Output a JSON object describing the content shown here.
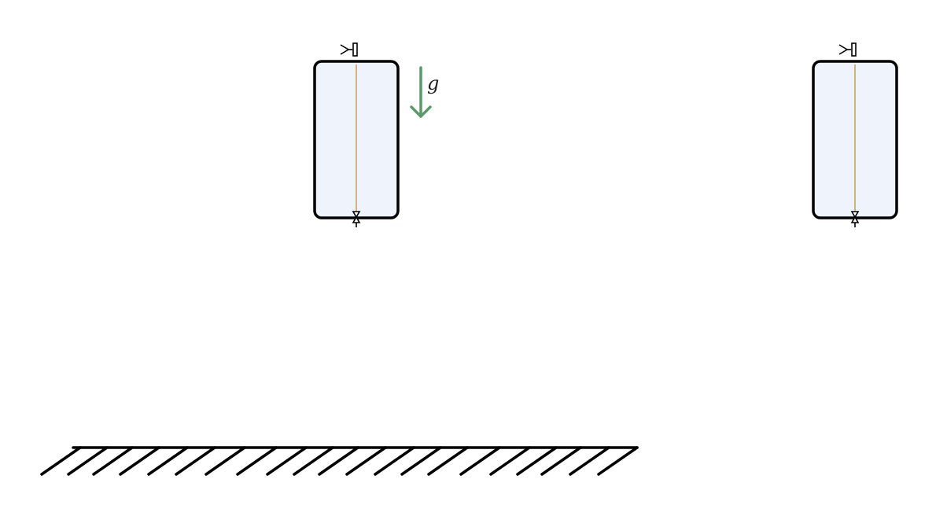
{
  "diagram": {
    "gravity": {
      "label": "g",
      "color": "#5a9a6a"
    },
    "colors": {
      "outline": "#000000",
      "tank_fill": "#eef3fc",
      "center_line": "#d2b47a",
      "ground": "#000000"
    },
    "tanks": [
      {
        "name": "left-tank"
      },
      {
        "name": "right-tank"
      }
    ],
    "ground": {
      "name": "ground-hatching"
    }
  }
}
